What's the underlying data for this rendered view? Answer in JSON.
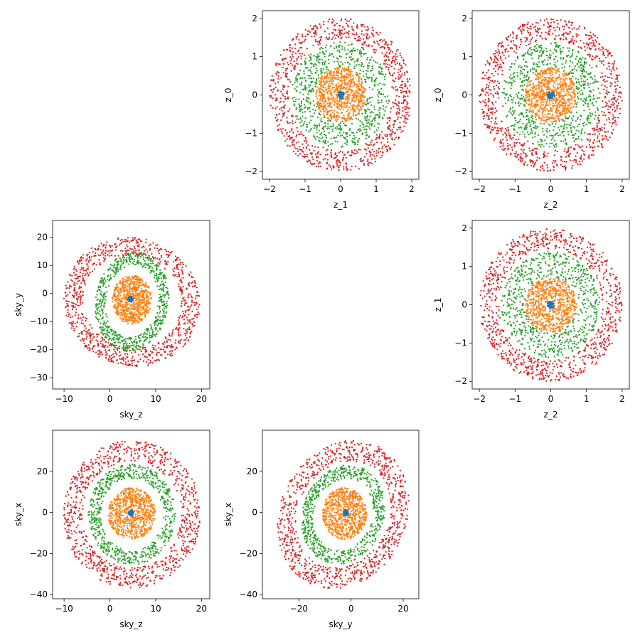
{
  "series_colors": {
    "inner": "#1f77b4",
    "ring1": "#ff7f0e",
    "ring2": "#2ca02c",
    "ring3": "#d62728"
  },
  "chart_data": [
    {
      "type": "scatter",
      "id": "z1-z0",
      "xlabel": "z_1",
      "ylabel": "z_0",
      "xlim": [
        -2.2,
        2.2
      ],
      "ylim": [
        -2.2,
        2.2
      ],
      "xticks": [
        -2,
        -1,
        0,
        1,
        2
      ],
      "yticks": [
        -2,
        -1,
        0,
        1,
        2
      ],
      "grid": false,
      "series": [
        {
          "color": "#d62728",
          "center": [
            0,
            0
          ],
          "radii": [
            1.45,
            2.0
          ],
          "shape": [
            [
              1,
              0
            ],
            [
              0,
              1
            ]
          ],
          "count": 900
        },
        {
          "color": "#2ca02c",
          "center": [
            0,
            0
          ],
          "radii": [
            0.72,
            1.38
          ],
          "shape": [
            [
              1,
              0
            ],
            [
              0,
              1
            ]
          ],
          "count": 650
        },
        {
          "color": "#ff7f0e",
          "center": [
            0,
            0
          ],
          "radii": [
            0.0,
            0.72
          ],
          "shape": [
            [
              1,
              0
            ],
            [
              0,
              1
            ]
          ],
          "count": 700
        },
        {
          "color": "#1f77b4",
          "center": [
            0,
            0
          ],
          "radii": [
            0.0,
            0.1
          ],
          "shape": [
            [
              1,
              0
            ],
            [
              0,
              1
            ]
          ],
          "count": 60
        }
      ]
    },
    {
      "type": "scatter",
      "id": "z2-z0",
      "xlabel": "z_2",
      "ylabel": "z_0",
      "xlim": [
        -2.2,
        2.2
      ],
      "ylim": [
        -2.2,
        2.2
      ],
      "xticks": [
        -2,
        -1,
        0,
        1,
        2
      ],
      "yticks": [
        -2,
        -1,
        0,
        1,
        2
      ],
      "grid": false,
      "series": [
        {
          "color": "#d62728",
          "center": [
            0,
            0
          ],
          "radii": [
            1.45,
            2.0
          ],
          "shape": [
            [
              1,
              0
            ],
            [
              0,
              1
            ]
          ],
          "count": 900
        },
        {
          "color": "#2ca02c",
          "center": [
            0,
            0
          ],
          "radii": [
            0.72,
            1.38
          ],
          "shape": [
            [
              1,
              0
            ],
            [
              0,
              1
            ]
          ],
          "count": 650
        },
        {
          "color": "#ff7f0e",
          "center": [
            0,
            0
          ],
          "radii": [
            0.0,
            0.72
          ],
          "shape": [
            [
              1,
              0
            ],
            [
              0,
              1
            ]
          ],
          "count": 700
        },
        {
          "color": "#1f77b4",
          "center": [
            0,
            0
          ],
          "radii": [
            0.0,
            0.1
          ],
          "shape": [
            [
              1,
              0
            ],
            [
              0,
              1
            ]
          ],
          "count": 60
        }
      ]
    },
    {
      "type": "scatter",
      "id": "skyz-skyy",
      "xlabel": "sky_z",
      "ylabel": "sky_y",
      "xlim": [
        -12.5,
        21.8
      ],
      "ylim": [
        -34.0,
        26.0
      ],
      "xticks": [
        -10,
        0,
        10,
        20
      ],
      "yticks": [
        -30,
        -20,
        -10,
        0,
        10,
        20
      ],
      "grid": false,
      "series": [
        {
          "color": "#d62728",
          "center": [
            4.8,
            -3.0
          ],
          "radii": [
            0.72,
            1.0
          ],
          "shape": [
            [
              10.5,
              10.5
            ],
            [
              -17.0,
              15.5
            ]
          ],
          "count": 900
        },
        {
          "color": "#2ca02c",
          "center": [
            4.8,
            -2.8
          ],
          "radii": [
            0.72,
            1.0
          ],
          "shape": [
            [
              7.5,
              3.0
            ],
            [
              -5.0,
              17.0
            ]
          ],
          "count": 650
        },
        {
          "color": "#ff7f0e",
          "center": [
            4.8,
            -2.2
          ],
          "radii": [
            0.0,
            1.0
          ],
          "shape": [
            [
              4.2,
              1.0
            ],
            [
              -2.0,
              8.5
            ]
          ],
          "count": 700
        },
        {
          "color": "#1f77b4",
          "center": [
            4.5,
            -2.0
          ],
          "radii": [
            0.0,
            1.0
          ],
          "shape": [
            [
              0.6,
              0
            ],
            [
              0,
              1.0
            ]
          ],
          "count": 60
        }
      ]
    },
    {
      "type": "scatter",
      "id": "z2-z1",
      "xlabel": "z_2",
      "ylabel": "z_1",
      "xlim": [
        -2.2,
        2.2
      ],
      "ylim": [
        -2.2,
        2.2
      ],
      "xticks": [
        -2,
        -1,
        0,
        1,
        2
      ],
      "yticks": [
        -2,
        -1,
        0,
        1,
        2
      ],
      "grid": false,
      "series": [
        {
          "color": "#d62728",
          "center": [
            0,
            0
          ],
          "radii": [
            1.45,
            2.0
          ],
          "shape": [
            [
              1,
              0
            ],
            [
              0,
              1
            ]
          ],
          "count": 900
        },
        {
          "color": "#2ca02c",
          "center": [
            0,
            0
          ],
          "radii": [
            0.72,
            1.38
          ],
          "shape": [
            [
              1,
              0
            ],
            [
              0,
              1
            ]
          ],
          "count": 650
        },
        {
          "color": "#ff7f0e",
          "center": [
            0,
            0
          ],
          "radii": [
            0.0,
            0.72
          ],
          "shape": [
            [
              1,
              0
            ],
            [
              0,
              1
            ]
          ],
          "count": 700
        },
        {
          "color": "#1f77b4",
          "center": [
            0,
            0
          ],
          "radii": [
            0.0,
            0.1
          ],
          "shape": [
            [
              1,
              0
            ],
            [
              0,
              1
            ]
          ],
          "count": 60
        }
      ]
    },
    {
      "type": "scatter",
      "id": "skyz-skyx",
      "xlabel": "sky_z",
      "ylabel": "sky_x",
      "xlim": [
        -12.5,
        21.8
      ],
      "ylim": [
        -42.0,
        40.0
      ],
      "xticks": [
        -10,
        0,
        10,
        20
      ],
      "yticks": [
        -40,
        -20,
        0,
        20
      ],
      "grid": false,
      "series": [
        {
          "color": "#d62728",
          "center": [
            4.8,
            -1.0
          ],
          "radii": [
            0.72,
            1.0
          ],
          "shape": [
            [
              15.0,
              0
            ],
            [
              0,
              36.0
            ]
          ],
          "count": 900
        },
        {
          "color": "#2ca02c",
          "center": [
            4.8,
            -1.0
          ],
          "radii": [
            0.72,
            1.0
          ],
          "shape": [
            [
              9.5,
              0
            ],
            [
              0,
              24.5
            ]
          ],
          "count": 650
        },
        {
          "color": "#ff7f0e",
          "center": [
            4.8,
            -0.5
          ],
          "radii": [
            0.0,
            1.0
          ],
          "shape": [
            [
              5.2,
              0
            ],
            [
              0,
              12.5
            ]
          ],
          "count": 700
        },
        {
          "color": "#1f77b4",
          "center": [
            4.6,
            -0.2
          ],
          "radii": [
            0.0,
            1.0
          ],
          "shape": [
            [
              0.6,
              0
            ],
            [
              0,
              1.5
            ]
          ],
          "count": 60
        }
      ]
    },
    {
      "type": "scatter",
      "id": "skyy-skyx",
      "xlabel": "sky_y",
      "ylabel": "sky_x",
      "xlim": [
        -34.0,
        26.0
      ],
      "ylim": [
        -42.0,
        40.0
      ],
      "xticks": [
        -20,
        0,
        20
      ],
      "yticks": [
        -40,
        -20,
        0,
        20
      ],
      "grid": false,
      "series": [
        {
          "color": "#d62728",
          "center": [
            -3.0,
            -1.0
          ],
          "radii": [
            0.72,
            1.0
          ],
          "shape": [
            [
              24.0,
              8.0
            ],
            [
              -6.0,
              35.5
            ]
          ],
          "count": 900
        },
        {
          "color": "#2ca02c",
          "center": [
            -3.0,
            -1.0
          ],
          "radii": [
            0.72,
            1.0
          ],
          "shape": [
            [
              15.5,
              4.0
            ],
            [
              -3.0,
              24.0
            ]
          ],
          "count": 650
        },
        {
          "color": "#ff7f0e",
          "center": [
            -2.5,
            -0.5
          ],
          "radii": [
            0.0,
            1.0
          ],
          "shape": [
            [
              8.5,
              0
            ],
            [
              0,
              12.5
            ]
          ],
          "count": 700
        },
        {
          "color": "#1f77b4",
          "center": [
            -2.0,
            -0.2
          ],
          "radii": [
            0.0,
            1.0
          ],
          "shape": [
            [
              1.0,
              0
            ],
            [
              0,
              1.5
            ]
          ],
          "count": 60
        }
      ]
    }
  ]
}
